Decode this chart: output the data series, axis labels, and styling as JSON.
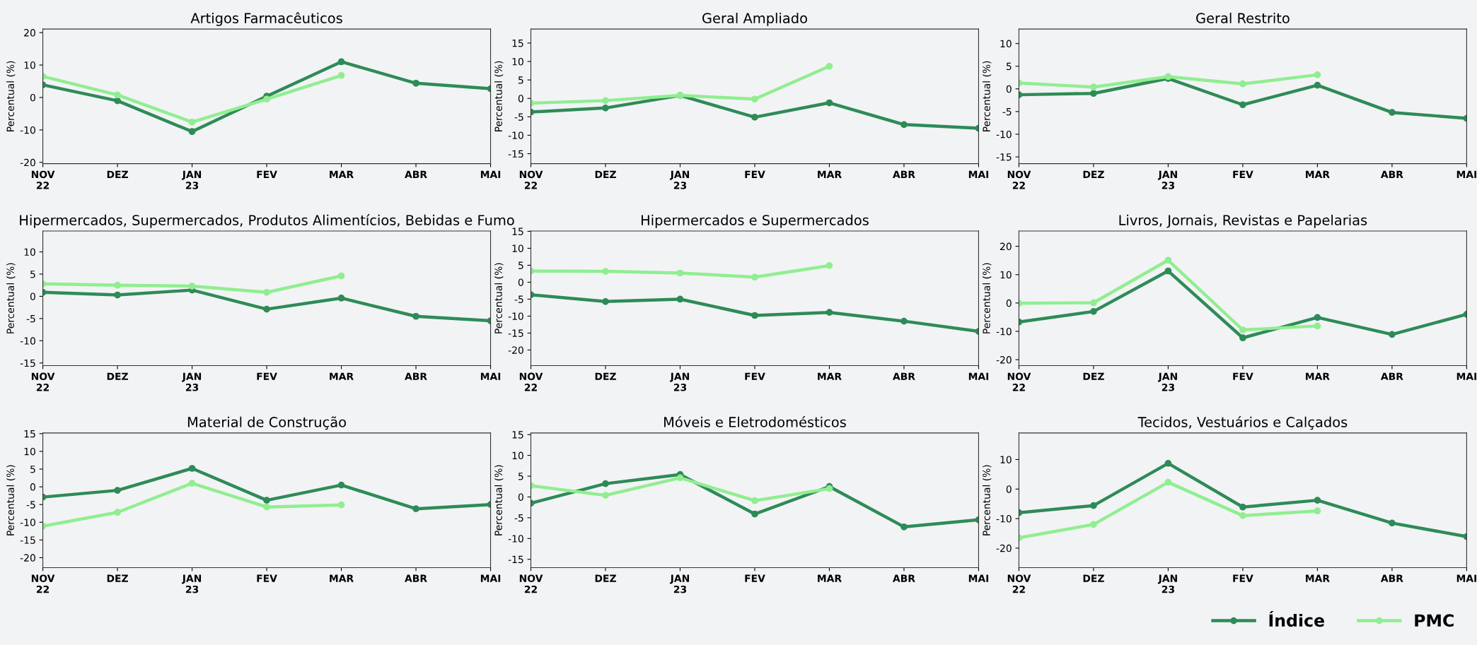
{
  "chart_data": [
    {
      "type": "line",
      "title": "Artigos Farmacêuticos",
      "ylabel": "Percentual (%)",
      "categories": [
        "NOV\n22",
        "DEZ",
        "JAN\n23",
        "FEV",
        "MAR",
        "ABR",
        "MAI"
      ],
      "ylim": [
        -20.4,
        21.1
      ],
      "yticks": [
        -20,
        -10,
        0,
        10,
        20
      ],
      "marker": "circle",
      "legend": "bottom right",
      "series": [
        {
          "name": "Índice",
          "color": "#2e8b57",
          "values": [
            3.9,
            -1.0,
            -10.5,
            0.4,
            11.0,
            4.4,
            2.7
          ]
        },
        {
          "name": "PMC",
          "color": "#90ee90",
          "values": [
            6.5,
            0.8,
            -7.6,
            -0.5,
            6.8,
            null,
            null
          ]
        }
      ]
    },
    {
      "type": "line",
      "title": "Geral Ampliado",
      "ylabel": "Percentual (%)",
      "categories": [
        "NOV\n22",
        "DEZ",
        "JAN\n23",
        "FEV",
        "MAR",
        "ABR",
        "MAI"
      ],
      "ylim": [
        -17.7,
        18.8
      ],
      "yticks": [
        -15,
        -10,
        -5,
        0,
        5,
        10,
        15
      ],
      "marker": "circle",
      "series": [
        {
          "color": "#2e8b57",
          "values": [
            -3.7,
            -2.6,
            0.8,
            -5.1,
            -1.2,
            -7.1,
            -8.1
          ]
        },
        {
          "color": "#90ee90",
          "values": [
            -1.3,
            -0.6,
            0.8,
            -0.2,
            8.7,
            null,
            null
          ]
        }
      ]
    },
    {
      "type": "line",
      "title": "Geral Restrito",
      "ylabel": "Percentual (%)",
      "categories": [
        "NOV\n22",
        "DEZ",
        "JAN\n23",
        "FEV",
        "MAR",
        "ABR",
        "MAI"
      ],
      "ylim": [
        -16.5,
        13.2
      ],
      "yticks": [
        -15,
        -10,
        -5,
        0,
        5,
        10
      ],
      "marker": "circle",
      "series": [
        {
          "color": "#2e8b57",
          "values": [
            -1.3,
            -1.0,
            2.3,
            -3.5,
            0.8,
            -5.2,
            -6.5
          ]
        },
        {
          "color": "#90ee90",
          "values": [
            1.3,
            0.4,
            2.7,
            1.1,
            3.1,
            null,
            null
          ]
        }
      ]
    },
    {
      "type": "line",
      "title": "Hipermercados, Supermercados, Produtos Alimentícios, Bebidas e Fumo",
      "ylabel": "Percentual (%)",
      "categories": [
        "NOV\n22",
        "DEZ",
        "JAN\n23",
        "FEV",
        "MAR",
        "ABR",
        "MAI"
      ],
      "ylim": [
        -15.6,
        14.7
      ],
      "yticks": [
        -15,
        -10,
        -5,
        0,
        5,
        10
      ],
      "marker": "circle",
      "series": [
        {
          "color": "#2e8b57",
          "values": [
            0.9,
            0.3,
            1.4,
            -2.9,
            -0.4,
            -4.5,
            -5.5
          ]
        },
        {
          "color": "#90ee90",
          "values": [
            2.8,
            2.5,
            2.3,
            0.9,
            4.6,
            null,
            null
          ]
        }
      ]
    },
    {
      "type": "line",
      "title": "Hipermercados e Supermercados",
      "ylabel": "Percentual (%)",
      "categories": [
        "NOV\n22",
        "DEZ",
        "JAN\n23",
        "FEV",
        "MAR",
        "ABR",
        "MAI"
      ],
      "ylim": [
        -24.6,
        15.1
      ],
      "yticks": [
        -20,
        -15,
        -10,
        -5,
        0,
        5,
        10,
        15
      ],
      "marker": "circle",
      "series": [
        {
          "color": "#2e8b57",
          "values": [
            -3.7,
            -5.7,
            -5.0,
            -9.8,
            -8.9,
            -11.5,
            -14.5
          ]
        },
        {
          "color": "#90ee90",
          "values": [
            3.3,
            3.2,
            2.7,
            1.5,
            4.9,
            null,
            null
          ]
        }
      ]
    },
    {
      "type": "line",
      "title": "Livros, Jornais, Revistas e Papelarias",
      "ylabel": "Percentual (%)",
      "categories": [
        "NOV\n22",
        "DEZ",
        "JAN\n23",
        "FEV",
        "MAR",
        "ABR",
        "MAI"
      ],
      "ylim": [
        -22.1,
        25.4
      ],
      "yticks": [
        -20,
        -10,
        0,
        10,
        20
      ],
      "marker": "circle",
      "series": [
        {
          "color": "#2e8b57",
          "values": [
            -6.7,
            -3.0,
            11.3,
            -12.3,
            -5.1,
            -11.1,
            -4.0
          ]
        },
        {
          "color": "#90ee90",
          "values": [
            -0.1,
            0.1,
            15.1,
            -9.5,
            -8.1,
            null,
            null
          ]
        }
      ]
    },
    {
      "type": "line",
      "title": "Material de Construção",
      "ylabel": "Percentual (%)",
      "categories": [
        "NOV\n22",
        "DEZ",
        "JAN\n23",
        "FEV",
        "MAR",
        "ABR",
        "MAI"
      ],
      "ylim": [
        -22.8,
        15.2
      ],
      "yticks": [
        -20,
        -15,
        -10,
        -5,
        0,
        5,
        10,
        15
      ],
      "marker": "circle",
      "series": [
        {
          "color": "#2e8b57",
          "values": [
            -2.9,
            -1.0,
            5.2,
            -3.8,
            0.5,
            -6.2,
            -5.0
          ]
        },
        {
          "color": "#90ee90",
          "values": [
            -11.1,
            -7.2,
            1.0,
            -5.7,
            -5.1,
            null,
            null
          ]
        }
      ]
    },
    {
      "type": "line",
      "title": "Móveis e Eletrodomésticos",
      "ylabel": "Percentual (%)",
      "categories": [
        "NOV\n22",
        "DEZ",
        "JAN\n23",
        "FEV",
        "MAR",
        "ABR",
        "MAI"
      ],
      "ylim": [
        -17.0,
        15.4
      ],
      "yticks": [
        -15,
        -10,
        -5,
        0,
        5,
        10,
        15
      ],
      "marker": "circle",
      "series": [
        {
          "color": "#2e8b57",
          "values": [
            -1.5,
            3.2,
            5.4,
            -4.1,
            2.5,
            -7.2,
            -5.5
          ]
        },
        {
          "color": "#90ee90",
          "values": [
            2.7,
            0.4,
            4.6,
            -0.9,
            2.0,
            null,
            null
          ]
        }
      ]
    },
    {
      "type": "line",
      "title": "Tecidos, Vestuários e Calçados",
      "ylabel": "Percentual (%)",
      "categories": [
        "NOV\n22",
        "DEZ",
        "JAN\n23",
        "FEV",
        "MAR",
        "ABR",
        "MAI"
      ],
      "ylim": [
        -26.6,
        19.0
      ],
      "yticks": [
        -20,
        -10,
        0,
        10
      ],
      "marker": "circle",
      "series": [
        {
          "color": "#2e8b57",
          "values": [
            -8.0,
            -5.6,
            8.7,
            -6.1,
            -3.8,
            -11.5,
            -16.1
          ]
        },
        {
          "color": "#90ee90",
          "values": [
            -16.5,
            -12.0,
            2.3,
            -9.0,
            -7.4,
            null,
            null
          ]
        }
      ]
    }
  ]
}
